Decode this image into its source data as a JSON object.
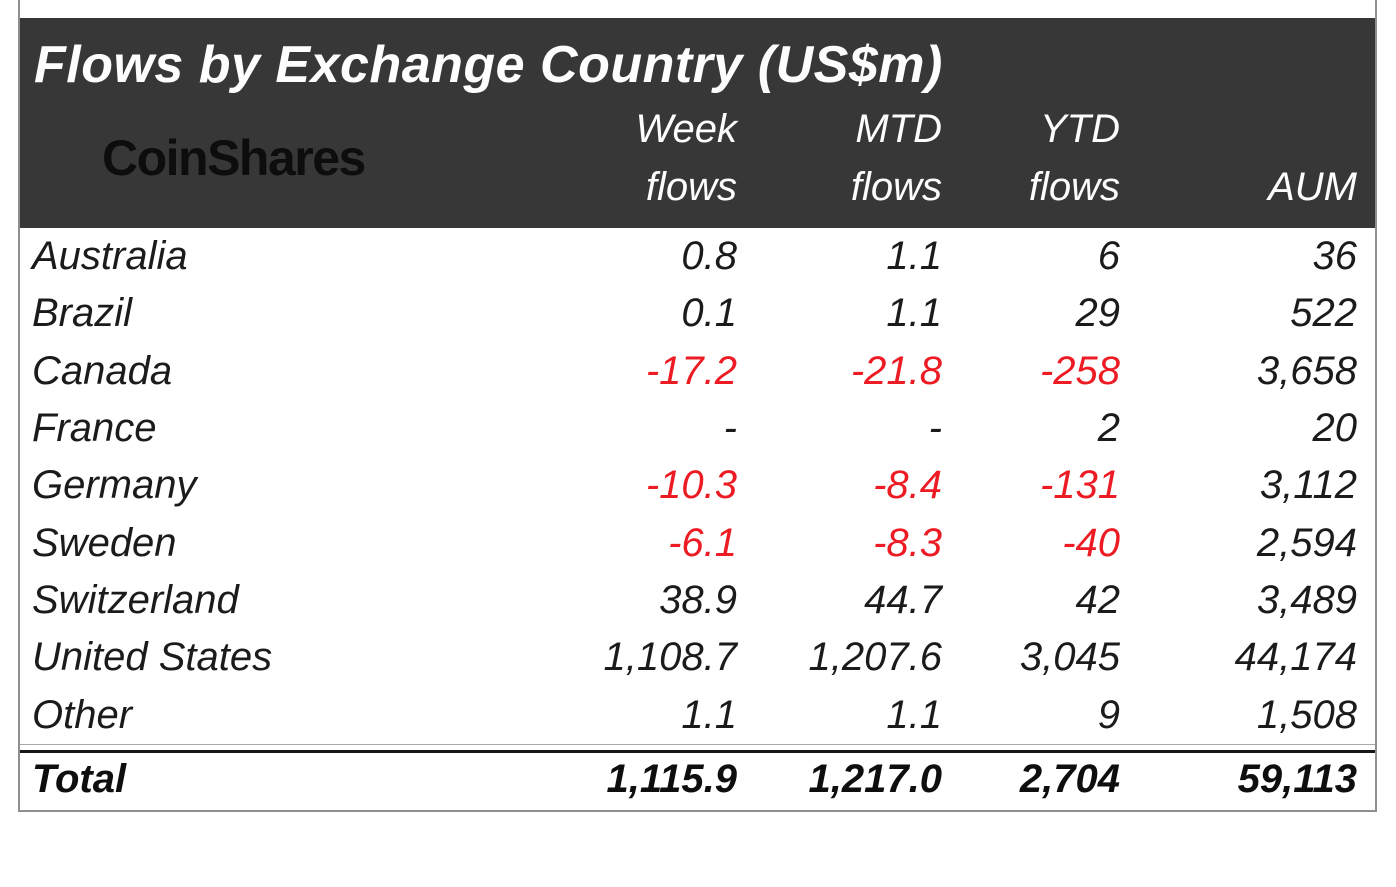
{
  "colors": {
    "negative": "#ed1c24",
    "header_bg": "#373737",
    "frame_border": "#8f8f8f"
  },
  "table": {
    "title": "Flows by Exchange Country (US$m)",
    "logo": "CoinShares",
    "columns": [
      {
        "line1": "Week",
        "line2": "flows"
      },
      {
        "line1": "MTD",
        "line2": "flows"
      },
      {
        "line1": "YTD",
        "line2": "flows"
      },
      {
        "line1": "",
        "line2": "AUM"
      }
    ],
    "rows": [
      {
        "country": "Australia",
        "week": "0.8",
        "mtd": "1.1",
        "ytd": "6",
        "aum": "36"
      },
      {
        "country": "Brazil",
        "week": "0.1",
        "mtd": "1.1",
        "ytd": "29",
        "aum": "522"
      },
      {
        "country": "Canada",
        "week": "-17.2",
        "mtd": "-21.8",
        "ytd": "-258",
        "aum": "3,658"
      },
      {
        "country": "France",
        "week": "-",
        "mtd": "-",
        "ytd": "2",
        "aum": "20"
      },
      {
        "country": "Germany",
        "week": "-10.3",
        "mtd": "-8.4",
        "ytd": "-131",
        "aum": "3,112"
      },
      {
        "country": "Sweden",
        "week": "-6.1",
        "mtd": "-8.3",
        "ytd": "-40",
        "aum": "2,594"
      },
      {
        "country": "Switzerland",
        "week": "38.9",
        "mtd": "44.7",
        "ytd": "42",
        "aum": "3,489"
      },
      {
        "country": "United States",
        "week": "1,108.7",
        "mtd": "1,207.6",
        "ytd": "3,045",
        "aum": "44,174"
      },
      {
        "country": "Other",
        "week": "1.1",
        "mtd": "1.1",
        "ytd": "9",
        "aum": "1,508"
      }
    ],
    "total": {
      "country": "Total",
      "week": "1,115.9",
      "mtd": "1,217.0",
      "ytd": "2,704",
      "aum": "59,113"
    }
  },
  "chart_data": {
    "type": "table",
    "title": "Flows by Exchange Country (US$m)",
    "columns": [
      "Week flows",
      "MTD flows",
      "YTD flows",
      "AUM"
    ],
    "rows": [
      {
        "country": "Australia",
        "week_flows": 0.8,
        "mtd_flows": 1.1,
        "ytd_flows": 6,
        "aum": 36
      },
      {
        "country": "Brazil",
        "week_flows": 0.1,
        "mtd_flows": 1.1,
        "ytd_flows": 29,
        "aum": 522
      },
      {
        "country": "Canada",
        "week_flows": -17.2,
        "mtd_flows": -21.8,
        "ytd_flows": -258,
        "aum": 3658
      },
      {
        "country": "France",
        "week_flows": null,
        "mtd_flows": null,
        "ytd_flows": 2,
        "aum": 20
      },
      {
        "country": "Germany",
        "week_flows": -10.3,
        "mtd_flows": -8.4,
        "ytd_flows": -131,
        "aum": 3112
      },
      {
        "country": "Sweden",
        "week_flows": -6.1,
        "mtd_flows": -8.3,
        "ytd_flows": -40,
        "aum": 2594
      },
      {
        "country": "Switzerland",
        "week_flows": 38.9,
        "mtd_flows": 44.7,
        "ytd_flows": 42,
        "aum": 3489
      },
      {
        "country": "United States",
        "week_flows": 1108.7,
        "mtd_flows": 1207.6,
        "ytd_flows": 3045,
        "aum": 44174
      },
      {
        "country": "Other",
        "week_flows": 1.1,
        "mtd_flows": 1.1,
        "ytd_flows": 9,
        "aum": 1508
      }
    ],
    "total": {
      "country": "Total",
      "week_flows": 1115.9,
      "mtd_flows": 1217.0,
      "ytd_flows": 2704,
      "aum": 59113
    },
    "notes": "Negative flow values rendered in red; '-' indicates no flow reported"
  }
}
